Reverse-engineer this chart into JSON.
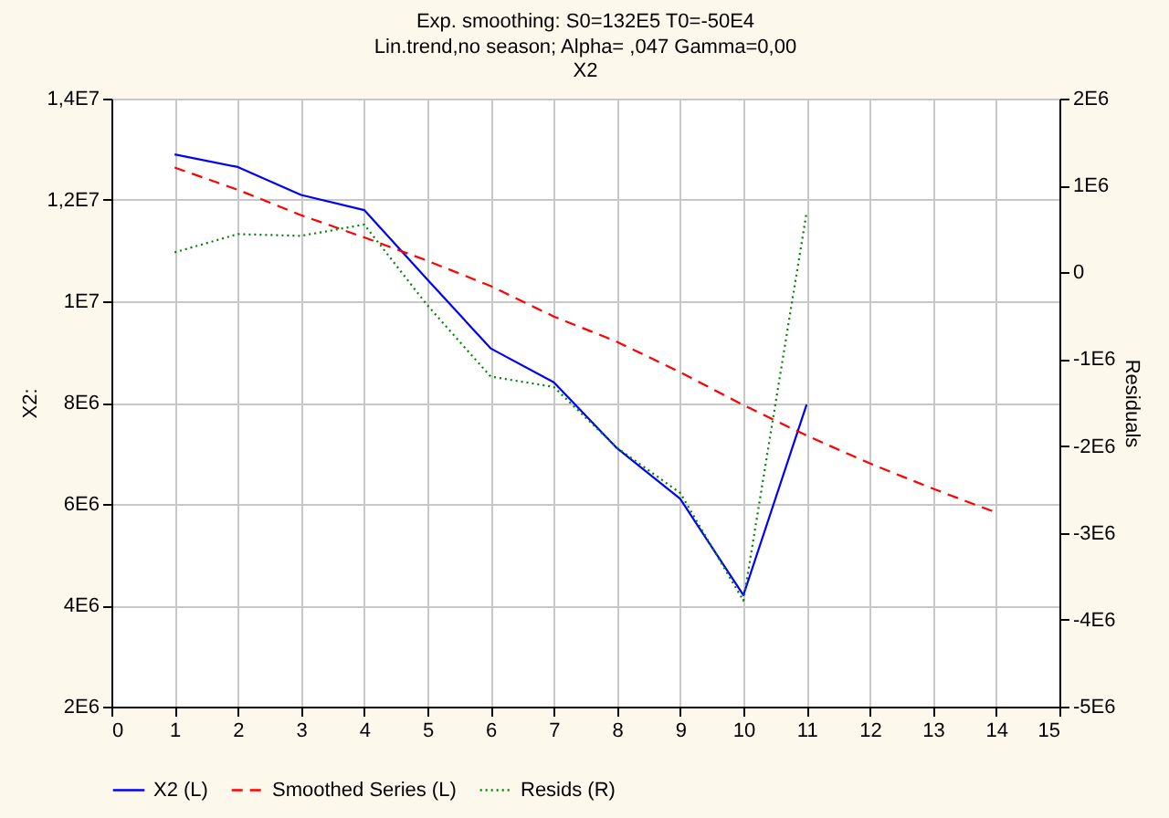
{
  "chart_data": {
    "type": "line",
    "title": "Exp. smoothing:  S0=132E5 T0=-50E4",
    "subtitle": "Lin.trend,no season; Alpha=  ,047 Gamma=0,00\nX2",
    "ylabel": "X2:",
    "y2label": "Residuals",
    "x": [
      1,
      2,
      3,
      4,
      5,
      6,
      7,
      8,
      9,
      10,
      11,
      12,
      13,
      14
    ],
    "series": [
      {
        "name": "X2 (L)",
        "color": "#0000ff",
        "line_style": "solid",
        "values": [
          12900000,
          12650000,
          12100000,
          11800000,
          10430000,
          9070000,
          8400000,
          7100000,
          6100000,
          4200000,
          7960000,
          null,
          null,
          null
        ]
      },
      {
        "name": "Smoothed Series (L)",
        "color": "#ff0000",
        "line_style": "dashed",
        "values": [
          12640000,
          12200000,
          11700000,
          11260000,
          10800000,
          10300000,
          9700000,
          9200000,
          8600000,
          7950000,
          7350000,
          6800000,
          6300000,
          5830000
        ]
      },
      {
        "name": "Resids (R)",
        "color": "#008000",
        "line_style": "dotted",
        "axis": "y2",
        "values": [
          230000,
          440000,
          420000,
          550000,
          -380000,
          -1200000,
          -1320000,
          -2020000,
          -2540000,
          -3780000,
          690000,
          null,
          null,
          null
        ]
      }
    ],
    "xlim": [
      0,
      15
    ],
    "xticks": [
      0,
      1,
      2,
      3,
      4,
      5,
      6,
      7,
      8,
      9,
      10,
      11,
      12,
      13,
      14,
      15
    ],
    "ylim": [
      2000000,
      14000000
    ],
    "yticks": [
      {
        "value": 2000000,
        "label": "2E6"
      },
      {
        "value": 4000000,
        "label": "4E6"
      },
      {
        "value": 6000000,
        "label": "6E6"
      },
      {
        "value": 8000000,
        "label": "8E6"
      },
      {
        "value": 10000000,
        "label": "1E7"
      },
      {
        "value": 12000000,
        "label": "1,2E7"
      },
      {
        "value": 14000000,
        "label": "1,4E7"
      }
    ],
    "y2lim": [
      -5000000,
      2000000
    ],
    "y2ticks": [
      {
        "value": -5000000,
        "label": "-5E6"
      },
      {
        "value": -4000000,
        "label": "-4E6"
      },
      {
        "value": -3000000,
        "label": "-3E6"
      },
      {
        "value": -2000000,
        "label": "-2E6"
      },
      {
        "value": -1000000,
        "label": "-1E6"
      },
      0,
      {
        "value": 1000000,
        "label": "1E6"
      },
      {
        "value": 2000000,
        "label": "2E6"
      }
    ],
    "grid": true,
    "legend": "bottom",
    "marker": "none"
  }
}
